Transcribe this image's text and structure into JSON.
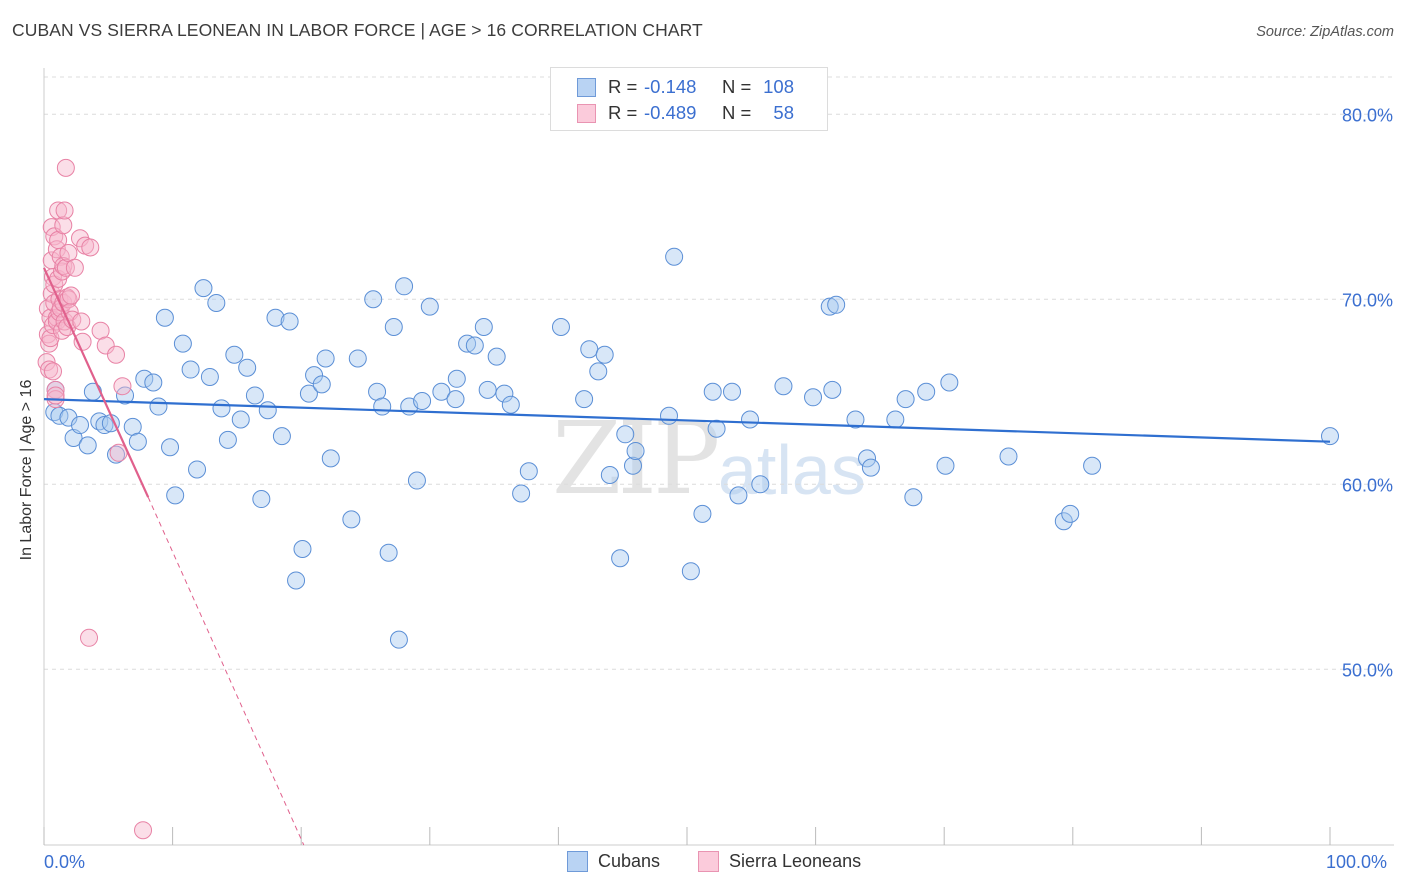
{
  "title": "CUBAN VS SIERRA LEONEAN IN LABOR FORCE | AGE > 16 CORRELATION CHART",
  "source": "Source: ZipAtlas.com",
  "watermark": {
    "zip": "ZIP",
    "atlas": "atlas"
  },
  "legend": {
    "rows": [
      {
        "r_label": "R =",
        "r_value": "-0.148",
        "n_label": "N =",
        "n_value": "108"
      },
      {
        "r_label": "R =",
        "r_value": "-0.489",
        "n_label": "N =",
        "n_value": "58"
      }
    ]
  },
  "bottom_legend": {
    "series1": "Cubans",
    "series2": "Sierra Leoneans"
  },
  "colors": {
    "cubans_fill": "#a9c9f0",
    "cubans_stroke": "#5b8fd6",
    "cubans_line": "#2f6fd0",
    "sl_fill": "#f7b6cb",
    "sl_stroke": "#e882a5",
    "sl_line": "#e0608c",
    "tick_label": "#3b6fd0",
    "grid": "#dcdcdc"
  },
  "chart_data": {
    "type": "scatter",
    "title": "CUBAN VS SIERRA LEONEAN IN LABOR FORCE | AGE > 16 CORRELATION CHART",
    "xlabel": "",
    "ylabel": "In Labor Force | Age > 16",
    "xlim": [
      0,
      100
    ],
    "ylim": [
      40.5,
      82.5
    ],
    "x_tick_labels": [
      "0.0%",
      "100.0%"
    ],
    "y_ticks": [
      50,
      60,
      70,
      80
    ],
    "y_tick_labels": [
      "50.0%",
      "60.0%",
      "70.0%",
      "80.0%"
    ],
    "grid": true,
    "legend_position": "top-center",
    "series": [
      {
        "name": "Cubans",
        "R": -0.148,
        "N": 108,
        "trend": {
          "x": [
            0,
            100
          ],
          "y": [
            64.6,
            62.3
          ]
        },
        "points": [
          [
            0.8,
            63.9
          ],
          [
            0.9,
            65.1
          ],
          [
            1.2,
            63.7
          ],
          [
            1.9,
            63.6
          ],
          [
            2.3,
            62.5
          ],
          [
            2.8,
            63.2
          ],
          [
            3.4,
            62.1
          ],
          [
            3.8,
            65.0
          ],
          [
            4.3,
            63.4
          ],
          [
            4.7,
            63.2
          ],
          [
            5.2,
            63.3
          ],
          [
            5.6,
            61.6
          ],
          [
            6.3,
            64.8
          ],
          [
            6.9,
            63.1
          ],
          [
            7.3,
            62.3
          ],
          [
            7.8,
            65.7
          ],
          [
            8.5,
            65.5
          ],
          [
            8.9,
            64.2
          ],
          [
            9.4,
            69.0
          ],
          [
            9.8,
            62.0
          ],
          [
            10.2,
            59.4
          ],
          [
            10.8,
            67.6
          ],
          [
            11.4,
            66.2
          ],
          [
            11.9,
            60.8
          ],
          [
            12.4,
            70.6
          ],
          [
            12.9,
            65.8
          ],
          [
            13.4,
            69.8
          ],
          [
            13.8,
            64.1
          ],
          [
            14.3,
            62.4
          ],
          [
            14.8,
            67.0
          ],
          [
            15.3,
            63.5
          ],
          [
            15.8,
            66.3
          ],
          [
            16.4,
            64.8
          ],
          [
            16.9,
            59.2
          ],
          [
            17.4,
            64.0
          ],
          [
            18.0,
            69.0
          ],
          [
            18.5,
            62.6
          ],
          [
            19.1,
            68.8
          ],
          [
            19.6,
            54.8
          ],
          [
            20.1,
            56.5
          ],
          [
            20.6,
            64.9
          ],
          [
            21.0,
            65.9
          ],
          [
            21.6,
            65.4
          ],
          [
            21.9,
            66.8
          ],
          [
            22.3,
            61.4
          ],
          [
            23.9,
            58.1
          ],
          [
            24.4,
            66.8
          ],
          [
            25.6,
            70.0
          ],
          [
            25.9,
            65.0
          ],
          [
            26.3,
            64.2
          ],
          [
            26.8,
            56.3
          ],
          [
            27.2,
            68.5
          ],
          [
            27.6,
            51.6
          ],
          [
            28.0,
            70.7
          ],
          [
            28.4,
            64.2
          ],
          [
            29.0,
            60.2
          ],
          [
            29.4,
            64.5
          ],
          [
            30.0,
            69.6
          ],
          [
            30.9,
            65.0
          ],
          [
            32.0,
            64.6
          ],
          [
            32.1,
            65.7
          ],
          [
            32.9,
            67.6
          ],
          [
            33.5,
            67.5
          ],
          [
            34.2,
            68.5
          ],
          [
            34.5,
            65.1
          ],
          [
            35.2,
            66.9
          ],
          [
            35.8,
            64.9
          ],
          [
            36.3,
            64.3
          ],
          [
            37.1,
            59.5
          ],
          [
            37.7,
            60.7
          ],
          [
            40.2,
            68.5
          ],
          [
            42.0,
            64.6
          ],
          [
            42.4,
            67.3
          ],
          [
            43.1,
            66.1
          ],
          [
            43.6,
            67.0
          ],
          [
            44.0,
            60.5
          ],
          [
            44.8,
            56.0
          ],
          [
            45.2,
            62.7
          ],
          [
            45.8,
            61.0
          ],
          [
            46.0,
            61.8
          ],
          [
            48.6,
            63.7
          ],
          [
            49.0,
            72.3
          ],
          [
            50.3,
            55.3
          ],
          [
            51.2,
            58.4
          ],
          [
            52.0,
            65.0
          ],
          [
            52.3,
            63.0
          ],
          [
            53.5,
            65.0
          ],
          [
            54.0,
            59.4
          ],
          [
            54.9,
            63.5
          ],
          [
            55.7,
            60.0
          ],
          [
            57.5,
            65.3
          ],
          [
            59.8,
            64.7
          ],
          [
            61.1,
            69.6
          ],
          [
            61.3,
            65.1
          ],
          [
            61.6,
            69.7
          ],
          [
            63.1,
            63.5
          ],
          [
            64.0,
            61.4
          ],
          [
            64.3,
            60.9
          ],
          [
            66.2,
            63.5
          ],
          [
            67.0,
            64.6
          ],
          [
            67.6,
            59.3
          ],
          [
            68.6,
            65.0
          ],
          [
            70.1,
            61.0
          ],
          [
            70.4,
            65.5
          ],
          [
            75.0,
            61.5
          ],
          [
            79.3,
            58.0
          ],
          [
            79.8,
            58.4
          ],
          [
            81.5,
            61.0
          ],
          [
            100.0,
            62.6
          ]
        ]
      },
      {
        "name": "Sierra Leoneans",
        "R": -0.489,
        "N": 58,
        "trend": {
          "x": [
            0,
            8.1
          ],
          "y": [
            71.7,
            59.3
          ]
        },
        "trend_dashed": {
          "x": [
            8.1,
            20.2
          ],
          "y": [
            59.3,
            40.5
          ]
        },
        "points": [
          [
            0.2,
            66.6
          ],
          [
            0.3,
            69.5
          ],
          [
            0.3,
            68.1
          ],
          [
            0.4,
            67.6
          ],
          [
            0.4,
            66.2
          ],
          [
            0.5,
            69.0
          ],
          [
            0.5,
            67.9
          ],
          [
            0.6,
            73.9
          ],
          [
            0.6,
            72.1
          ],
          [
            0.6,
            70.3
          ],
          [
            0.7,
            68.6
          ],
          [
            0.7,
            71.2
          ],
          [
            0.7,
            66.1
          ],
          [
            0.8,
            73.4
          ],
          [
            0.8,
            70.8
          ],
          [
            0.8,
            69.8
          ],
          [
            0.9,
            65.1
          ],
          [
            0.9,
            64.6
          ],
          [
            1.0,
            72.7
          ],
          [
            1.0,
            69.0
          ],
          [
            1.0,
            68.8
          ],
          [
            1.1,
            74.8
          ],
          [
            1.1,
            73.2
          ],
          [
            1.1,
            71.1
          ],
          [
            1.2,
            70.0
          ],
          [
            1.2,
            69.3
          ],
          [
            1.3,
            72.3
          ],
          [
            1.3,
            69.5
          ],
          [
            1.4,
            71.5
          ],
          [
            1.4,
            68.3
          ],
          [
            1.5,
            74.0
          ],
          [
            1.5,
            71.8
          ],
          [
            1.5,
            69.8
          ],
          [
            1.6,
            74.8
          ],
          [
            1.6,
            68.8
          ],
          [
            1.7,
            77.1
          ],
          [
            1.7,
            71.7
          ],
          [
            1.8,
            70.1
          ],
          [
            1.8,
            68.5
          ],
          [
            1.9,
            72.5
          ],
          [
            1.9,
            70.0
          ],
          [
            2.0,
            69.3
          ],
          [
            2.1,
            70.2
          ],
          [
            2.2,
            68.9
          ],
          [
            2.4,
            71.7
          ],
          [
            2.8,
            73.3
          ],
          [
            2.9,
            68.8
          ],
          [
            3.0,
            67.7
          ],
          [
            3.2,
            72.9
          ],
          [
            3.5,
            51.7
          ],
          [
            3.6,
            72.8
          ],
          [
            4.4,
            68.3
          ],
          [
            4.8,
            67.5
          ],
          [
            5.6,
            67.0
          ],
          [
            5.8,
            61.7
          ],
          [
            6.1,
            65.3
          ],
          [
            7.7,
            41.3
          ],
          [
            0.9,
            64.8
          ]
        ]
      }
    ]
  }
}
